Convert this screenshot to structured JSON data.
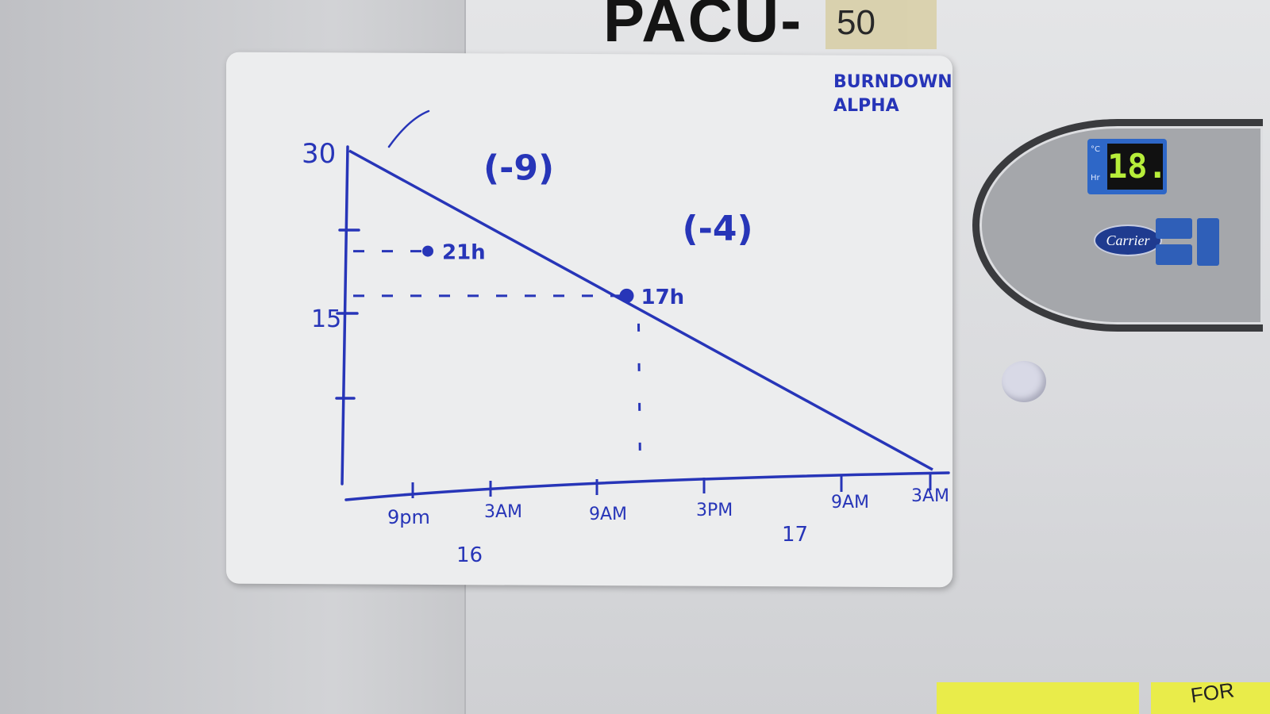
{
  "scene": {
    "unit_label": "PACU-",
    "tape_label": "50",
    "display_value": "18.",
    "display_units": [
      "°C",
      "Hr"
    ],
    "brand": "Carrier",
    "sticky_note_text": "FOR"
  },
  "chart_data": {
    "type": "line",
    "title": "BURNDOWN ALPHA",
    "subtitle": "",
    "xlabel": "",
    "ylabel": "",
    "y_ticks": [
      "30",
      "15"
    ],
    "ylim": [
      0,
      30
    ],
    "x_ticks": [
      "9pm",
      "3AM",
      "9AM",
      "3PM",
      "9AM",
      "3AM"
    ],
    "day_labels": [
      {
        "text": "16",
        "under": "9pm"
      },
      {
        "text": "17",
        "under": "9AM"
      }
    ],
    "ideal_line": {
      "start": 30,
      "end": 0
    },
    "points": [
      {
        "label": "21h",
        "value": 21,
        "delta": "(-9)",
        "x_between": [
          "9pm",
          "3AM"
        ]
      },
      {
        "label": "17h",
        "value": 17,
        "delta": "(-4)",
        "x_between": [
          "9AM",
          "3PM"
        ]
      }
    ],
    "grid": false,
    "ink_color": "#2735b8"
  }
}
